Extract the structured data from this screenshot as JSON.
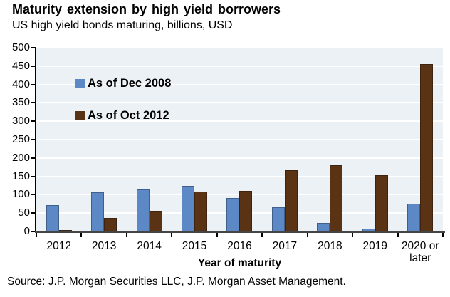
{
  "header": {
    "title": "Maturity extension by high yield borrowers",
    "subtitle": "US high yield bonds maturing, billions, USD"
  },
  "chart_data": {
    "type": "bar",
    "title": "Maturity extension by high yield borrowers",
    "subtitle": "US high yield bonds maturing, billions, USD",
    "categories": [
      "2012",
      "2013",
      "2014",
      "2015",
      "2016",
      "2017",
      "2018",
      "2019",
      "2020 or later"
    ],
    "series": [
      {
        "name": "As of Dec 2008",
        "color": "#5c88c5",
        "values": [
          72,
          106,
          115,
          125,
          92,
          66,
          24,
          7,
          75
        ]
      },
      {
        "name": "As of Oct 2012",
        "color": "#5a3315",
        "values": [
          4,
          36,
          56,
          108,
          110,
          167,
          180,
          154,
          455
        ]
      }
    ],
    "xlabel": "Year of maturity",
    "ylabel": "",
    "ylim": [
      0,
      500
    ],
    "ytick_step": 50,
    "grid": "horizontal-white-on-light-blue-panel",
    "panel_background": "#ecf1f5",
    "legend_position": "top-left-inside-plot"
  },
  "footer": {
    "source": "Source: J.P. Morgan Securities LLC, J.P. Morgan Asset Management."
  }
}
